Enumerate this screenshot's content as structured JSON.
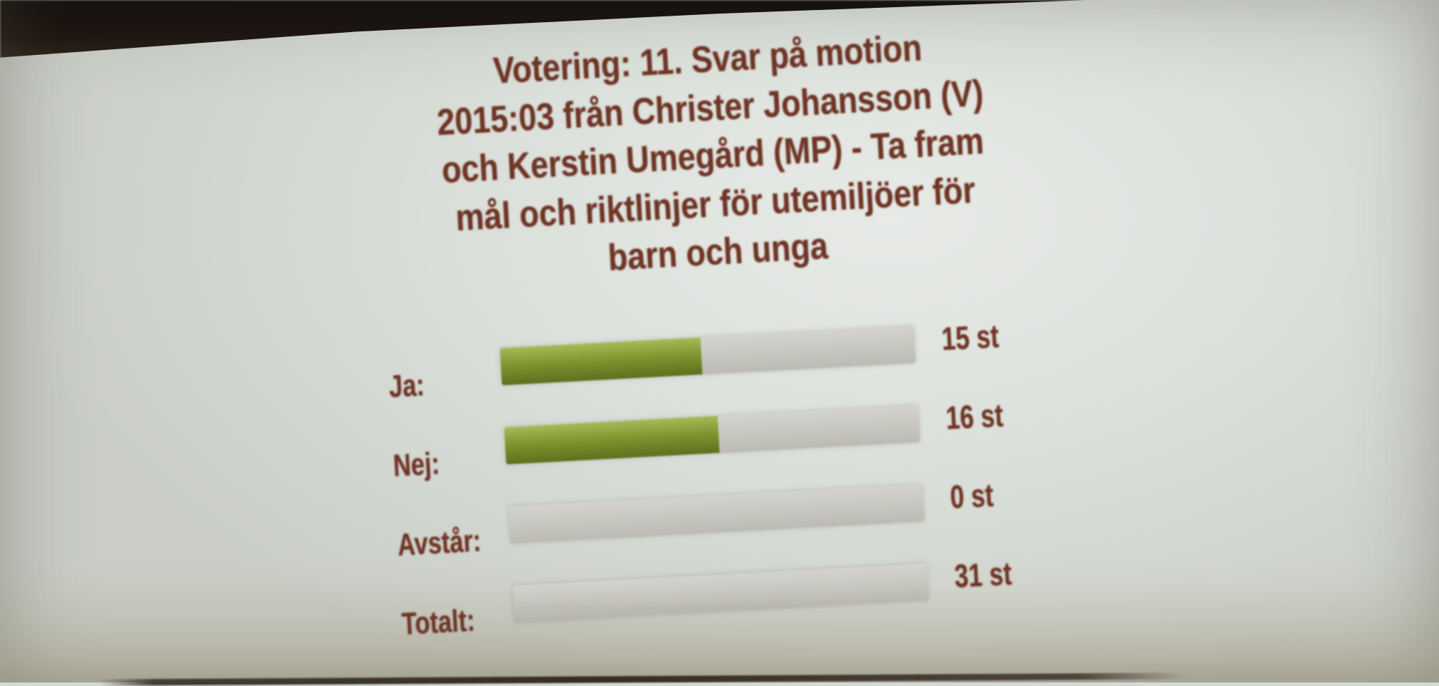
{
  "screen": {
    "title_lines": [
      "Votering: 11. Svar på motion",
      "2015:03 från Christer Johansson (V)",
      "och Kerstin Umegård (MP) - Ta fram",
      "mål och riktlinjer för utemiljöer för",
      "barn och unga"
    ]
  },
  "chart_data": {
    "type": "bar",
    "orientation": "horizontal",
    "title": "Votering: 11. Svar på motion 2015:03 från Christer Johansson (V) och Kerstin Umegård (MP) - Ta fram mål och riktlinjer för utemiljöer för barn och unga",
    "categories": [
      "Ja",
      "Nej",
      "Avstår",
      "Totalt"
    ],
    "values": [
      15,
      16,
      0,
      31
    ],
    "unit": "st",
    "xlim": [
      0,
      31
    ],
    "grid": false,
    "legend": false,
    "colors": {
      "fill_green": "#80962f",
      "track_gray": "#c7c6bf",
      "text_maroon": "#6f3526"
    },
    "rows": [
      {
        "label": "Ja:",
        "value": 15,
        "value_label": "15 st",
        "fill_pct": 48.4,
        "fill_style": "width:48.4%"
      },
      {
        "label": "Nej:",
        "value": 16,
        "value_label": "16 st",
        "fill_pct": 51.6,
        "fill_style": "width:51.6%"
      },
      {
        "label": "Avstår:",
        "value": 0,
        "value_label": "0 st",
        "fill_pct": 0,
        "fill_style": "width:0%"
      },
      {
        "label": "Totalt:",
        "value": 31,
        "value_label": "31 st",
        "fill_pct": 0,
        "fill_style": "width:0%"
      }
    ]
  }
}
